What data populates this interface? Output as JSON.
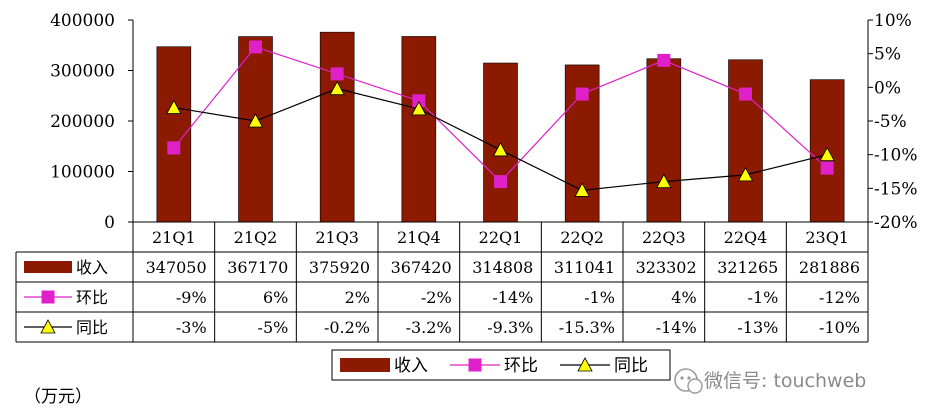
{
  "chart_data": {
    "type": "bar",
    "categories": [
      "21Q1",
      "21Q2",
      "21Q3",
      "21Q4",
      "22Q1",
      "22Q2",
      "22Q3",
      "22Q4",
      "23Q1"
    ],
    "series": [
      {
        "name": "收入",
        "kind": "bar",
        "axis": "left",
        "color": "#8B1A00",
        "values": [
          347050,
          367170,
          375920,
          367420,
          314808,
          311041,
          323302,
          321265,
          281886
        ]
      },
      {
        "name": "环比",
        "kind": "line",
        "axis": "right",
        "color": "#E020C8",
        "marker": "square",
        "values": [
          -9,
          6,
          2,
          -2,
          -14,
          -1,
          4,
          -1,
          -12
        ]
      },
      {
        "name": "同比",
        "kind": "line",
        "axis": "right",
        "color": "#000000",
        "marker": "triangle",
        "marker_color": "#FFFF00",
        "values": [
          -3,
          -5,
          -0.2,
          -3.2,
          -9.3,
          -15.3,
          -14,
          -13,
          -10
        ]
      }
    ],
    "left_axis": {
      "min": 0,
      "max": 400000,
      "ticks": [
        "0",
        "100000",
        "200000",
        "300000",
        "400000"
      ]
    },
    "right_axis": {
      "min": -20,
      "max": 10,
      "ticks": [
        "-20%",
        "-15%",
        "-10%",
        "-5%",
        "0%",
        "5%",
        "10%"
      ]
    },
    "table": {
      "rows": [
        {
          "label": "收入",
          "cells": [
            "347050",
            "367170",
            "375920",
            "367420",
            "314808",
            "311041",
            "323302",
            "321265",
            "281886"
          ]
        },
        {
          "label": "环比",
          "cells": [
            "-9%",
            "6%",
            "2%",
            "-2%",
            "-14%",
            "-1%",
            "4%",
            "-1%",
            "-12%"
          ]
        },
        {
          "label": "同比",
          "cells": [
            "-3%",
            "-5%",
            "-0.2%",
            "-3.2%",
            "-9.3%",
            "-15.3%",
            "-14%",
            "-13%",
            "-10%"
          ]
        }
      ]
    },
    "legend": [
      "收入",
      "环比",
      "同比"
    ],
    "legend_position": "bottom",
    "unit_label": "（万元）",
    "grid": false
  },
  "watermark": {
    "text": "微信号: touchweb",
    "icon": "wechat-icon"
  }
}
